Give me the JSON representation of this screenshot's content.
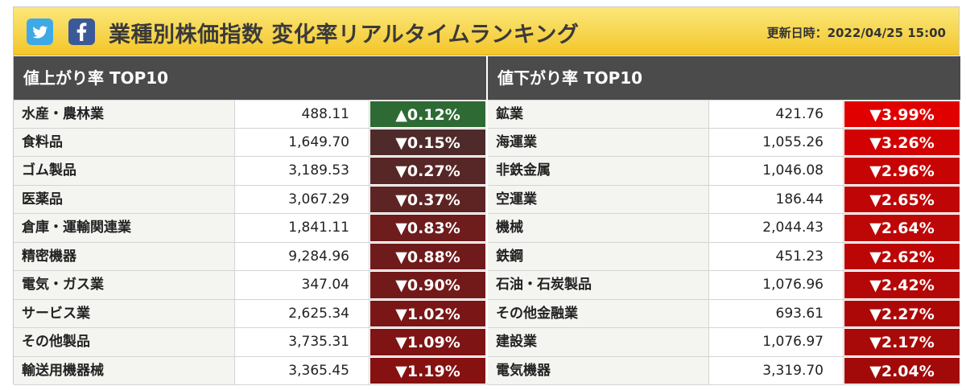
{
  "header": {
    "title": "業種別株価指数 変化率リアルタイムランキング",
    "updated": "更新日時：2022/04/25 15:00",
    "twitter_icon": "twitter-icon",
    "facebook_icon": "facebook-icon"
  },
  "gainers": {
    "heading": "値上がり率 TOP10",
    "rows": [
      {
        "name": "水産・農林業",
        "value": "488.11",
        "change": "▲0.12%",
        "color": "#2e6a33"
      },
      {
        "name": "食料品",
        "value": "1,649.70",
        "change": "▼0.15%",
        "color": "#4f2a2a"
      },
      {
        "name": "ゴム製品",
        "value": "3,189.53",
        "change": "▼0.27%",
        "color": "#572626"
      },
      {
        "name": "医薬品",
        "value": "3,067.29",
        "change": "▼0.37%",
        "color": "#5e2424"
      },
      {
        "name": "倉庫・運輸関連業",
        "value": "1,841.11",
        "change": "▼0.83%",
        "color": "#6e1c1c"
      },
      {
        "name": "精密機器",
        "value": "9,284.96",
        "change": "▼0.88%",
        "color": "#701b1b"
      },
      {
        "name": "電気・ガス業",
        "value": "347.04",
        "change": "▼0.90%",
        "color": "#721a1a"
      },
      {
        "name": "サービス業",
        "value": "2,625.34",
        "change": "▼1.02%",
        "color": "#7a1616"
      },
      {
        "name": "その他製品",
        "value": "3,735.31",
        "change": "▼1.09%",
        "color": "#7e1414"
      },
      {
        "name": "輸送用機器械",
        "value": "3,365.45",
        "change": "▼1.19%",
        "color": "#851111"
      }
    ]
  },
  "losers": {
    "heading": "値下がり率 TOP10",
    "rows": [
      {
        "name": "鉱業",
        "value": "421.76",
        "change": "▼3.99%",
        "color": "#e00000"
      },
      {
        "name": "海運業",
        "value": "1,055.26",
        "change": "▼3.26%",
        "color": "#d20202"
      },
      {
        "name": "非鉄金属",
        "value": "1,046.08",
        "change": "▼2.96%",
        "color": "#c70404"
      },
      {
        "name": "空運業",
        "value": "186.44",
        "change": "▼2.65%",
        "color": "#bf0505"
      },
      {
        "name": "機械",
        "value": "2,044.43",
        "change": "▼2.64%",
        "color": "#bd0606"
      },
      {
        "name": "鉄鋼",
        "value": "451.23",
        "change": "▼2.62%",
        "color": "#bc0606"
      },
      {
        "name": "石油・石炭製品",
        "value": "1,076.96",
        "change": "▼2.42%",
        "color": "#b40707"
      },
      {
        "name": "その他金融業",
        "value": "693.61",
        "change": "▼2.27%",
        "color": "#ad0808"
      },
      {
        "name": "建設業",
        "value": "1,076.97",
        "change": "▼2.17%",
        "color": "#a80909"
      },
      {
        "name": "電気機器",
        "value": "3,319.70",
        "change": "▼2.04%",
        "color": "#a20a0a"
      }
    ]
  }
}
